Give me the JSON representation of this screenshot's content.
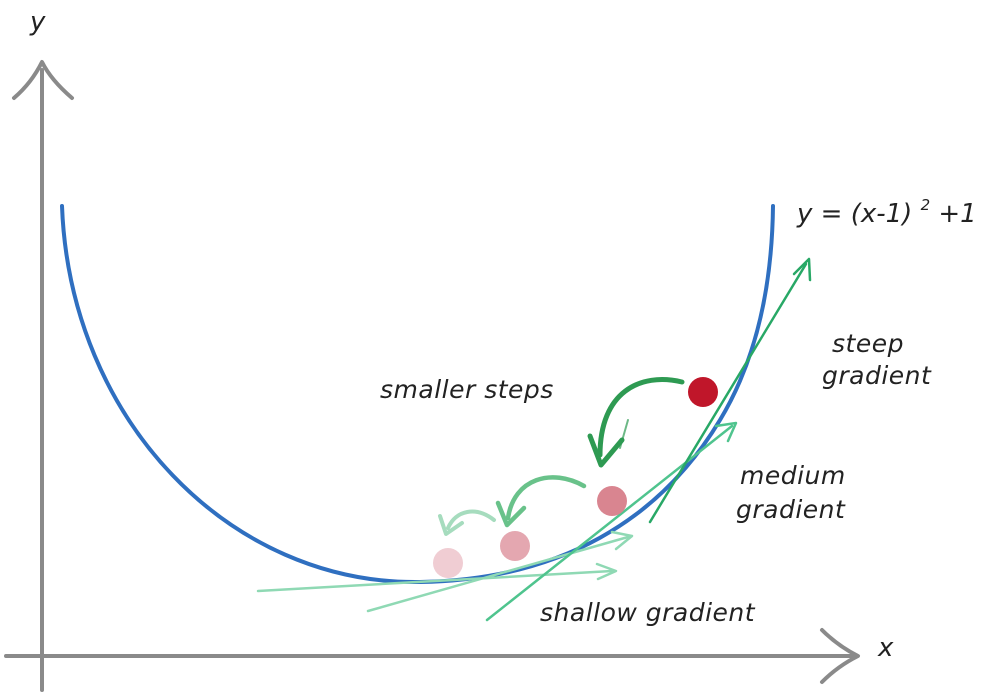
{
  "axes": {
    "x_label": "x",
    "y_label": "y"
  },
  "equation": {
    "lhs": "y = (x-1)",
    "exponent": "2",
    "rhs": "+1"
  },
  "labels": {
    "smaller_steps": "smaller steps",
    "steep_line1": "steep",
    "steep_line2": "gradient",
    "medium_line1": "medium",
    "medium_line2": "gradient",
    "shallow": "shallow gradient"
  },
  "colors": {
    "axis": "#8a8a8a",
    "curve": "#2f6fc0",
    "tangent_shallow": "#8fd9b4",
    "tangent_medium": "#4fc48e",
    "tangent_steep": "#28a866",
    "ball_start": "#c0162a",
    "ball_2": "#d98590",
    "ball_3": "#e4a7b0",
    "ball_4": "#f0cdd3",
    "step_arrow_big": "#2e9a52",
    "step_arrow_mid": "#69c28a",
    "step_arrow_small": "#a6dcbe"
  }
}
